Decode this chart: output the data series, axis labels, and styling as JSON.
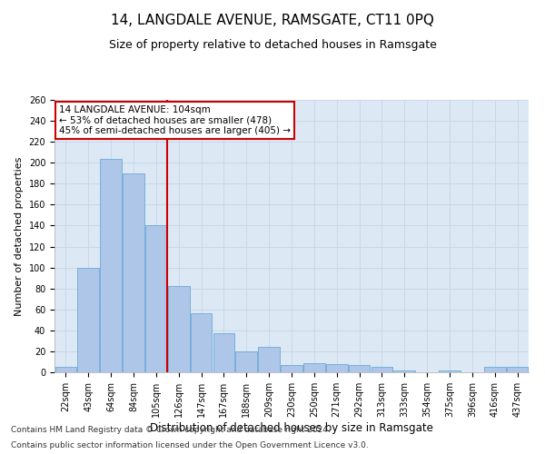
{
  "title": "14, LANGDALE AVENUE, RAMSGATE, CT11 0PQ",
  "subtitle": "Size of property relative to detached houses in Ramsgate",
  "xlabel": "Distribution of detached houses by size in Ramsgate",
  "ylabel": "Number of detached properties",
  "categories": [
    "22sqm",
    "43sqm",
    "64sqm",
    "84sqm",
    "105sqm",
    "126sqm",
    "147sqm",
    "167sqm",
    "188sqm",
    "209sqm",
    "230sqm",
    "250sqm",
    "271sqm",
    "292sqm",
    "313sqm",
    "333sqm",
    "354sqm",
    "375sqm",
    "396sqm",
    "416sqm",
    "437sqm"
  ],
  "values": [
    5,
    100,
    204,
    190,
    140,
    82,
    56,
    37,
    20,
    24,
    7,
    9,
    8,
    7,
    5,
    2,
    0,
    2,
    0,
    5,
    5
  ],
  "bar_color": "#aec6e8",
  "bar_edge_color": "#5a9fd4",
  "vline_color": "#cc0000",
  "vline_x_index": 4,
  "annotation_text": "14 LANGDALE AVENUE: 104sqm\n← 53% of detached houses are smaller (478)\n45% of semi-detached houses are larger (405) →",
  "annotation_box_color": "#ffffff",
  "annotation_box_edge": "#cc0000",
  "grid_color": "#c8d8e8",
  "background_color": "#dce9f5",
  "ylim": [
    0,
    260
  ],
  "yticks": [
    0,
    20,
    40,
    60,
    80,
    100,
    120,
    140,
    160,
    180,
    200,
    220,
    240,
    260
  ],
  "footer1": "Contains HM Land Registry data © Crown copyright and database right 2024.",
  "footer2": "Contains public sector information licensed under the Open Government Licence v3.0.",
  "title_fontsize": 11,
  "subtitle_fontsize": 9,
  "xlabel_fontsize": 8.5,
  "ylabel_fontsize": 8,
  "tick_fontsize": 7,
  "annotation_fontsize": 7.5,
  "footer_fontsize": 6.5
}
